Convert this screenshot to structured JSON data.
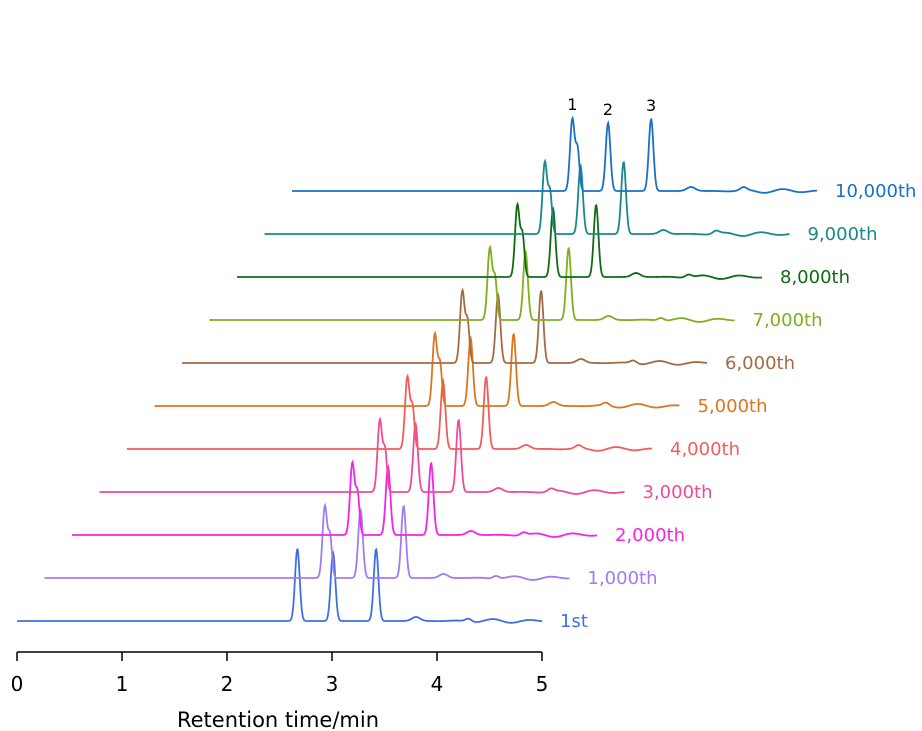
{
  "chart_data": {
    "type": "line",
    "title": "",
    "xlabel": "Retention time/min",
    "ylabel": "",
    "xlim": [
      0,
      5
    ],
    "x_ticks": [
      "0",
      "1",
      "2",
      "3",
      "4",
      "5"
    ],
    "grid": false,
    "legend": "series labels at the right end of each trace",
    "peak_labels": [
      "1",
      "2",
      "3"
    ],
    "peaks": [
      {
        "label": "1",
        "retention_time": 2.67
      },
      {
        "label": "2",
        "retention_time": 3.01
      },
      {
        "label": "3",
        "retention_time": 3.42
      }
    ],
    "series": [
      {
        "name": "1st",
        "color": "#3F6FE8"
      },
      {
        "name": "1,000th",
        "color": "#A07CF0"
      },
      {
        "name": "2,000th",
        "color": "#F224E6"
      },
      {
        "name": "3,000th",
        "color": "#F04A9A"
      },
      {
        "name": "4,000th",
        "color": "#F25C5C"
      },
      {
        "name": "5,000th",
        "color": "#D9771E"
      },
      {
        "name": "6,000th",
        "color": "#A36B45"
      },
      {
        "name": "7,000th",
        "color": "#7FAE1F"
      },
      {
        "name": "8,000th",
        "color": "#0F6B12"
      },
      {
        "name": "9,000th",
        "color": "#17898A"
      },
      {
        "name": "10,000th",
        "color": "#1A6FC9"
      }
    ]
  }
}
